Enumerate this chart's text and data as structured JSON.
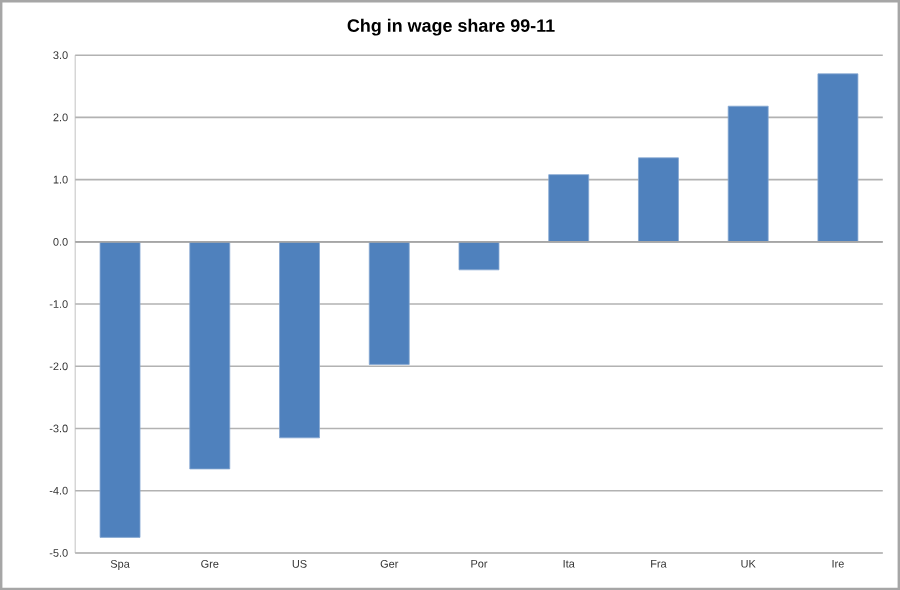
{
  "chart_data": {
    "type": "bar",
    "title": "Chg in wage share 99-11",
    "categories": [
      "Spa",
      "Gre",
      "US",
      "Ger",
      "Por",
      "Ita",
      "Fra",
      "UK",
      "Ire"
    ],
    "values": [
      -4.75,
      -3.65,
      -3.15,
      -1.97,
      -0.45,
      1.08,
      1.35,
      2.18,
      2.7
    ],
    "color": "#4f81bd",
    "ylim": [
      -5,
      3
    ],
    "yticks": [
      {
        "value": -5,
        "label": "-5.0"
      },
      {
        "value": -4,
        "label": "-4.0"
      },
      {
        "value": -3,
        "label": "-3.0"
      },
      {
        "value": -2,
        "label": "-2.0"
      },
      {
        "value": -1,
        "label": "-1.0"
      },
      {
        "value": 0,
        "label": "0.0"
      },
      {
        "value": 1,
        "label": "1.0"
      },
      {
        "value": 2,
        "label": "2.0"
      },
      {
        "value": 3,
        "label": "3.0"
      }
    ],
    "grid": "y"
  }
}
